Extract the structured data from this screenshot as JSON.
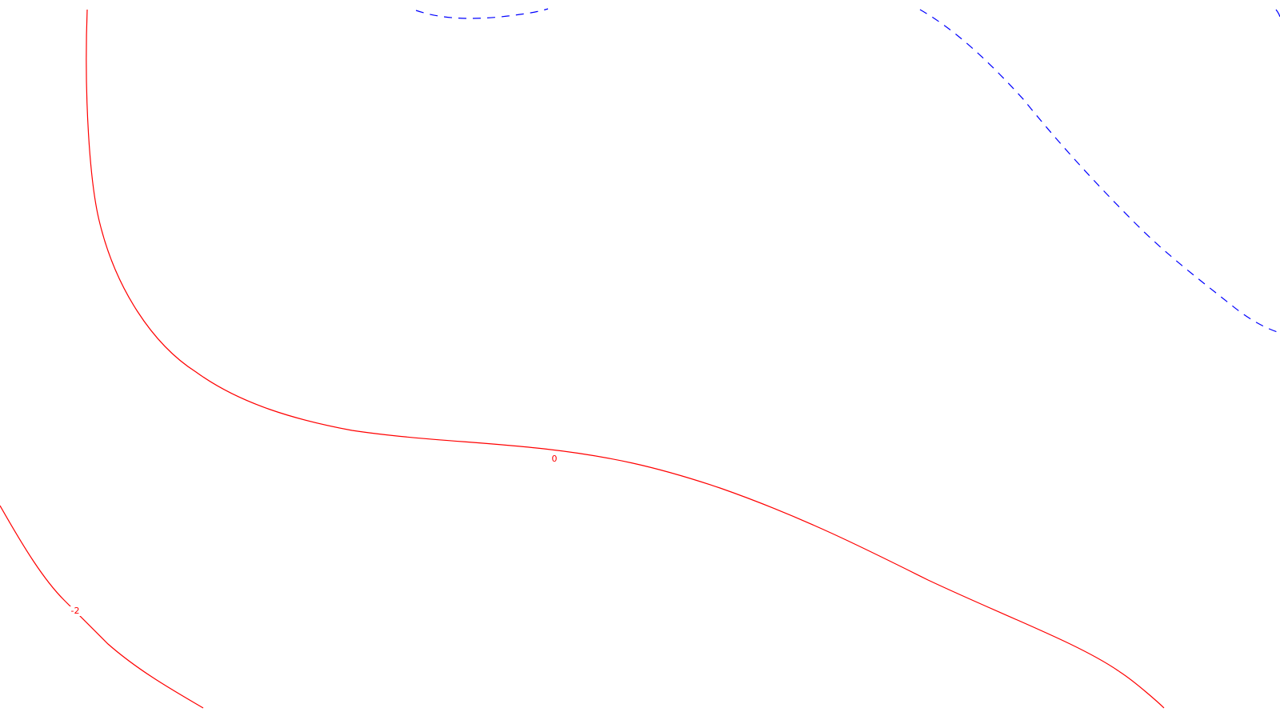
{
  "contours": [
    {
      "id": "contour-0",
      "label": "0",
      "color": "#ff0000",
      "style": "solid"
    },
    {
      "id": "contour-neg2",
      "label": "-2",
      "color": "#ff0000",
      "style": "solid"
    },
    {
      "id": "contour-top-dashed",
      "label": "",
      "color": "#0000ff",
      "style": "dashed"
    },
    {
      "id": "contour-right-dashed",
      "label": "",
      "color": "#0000ff",
      "style": "dashed"
    }
  ]
}
